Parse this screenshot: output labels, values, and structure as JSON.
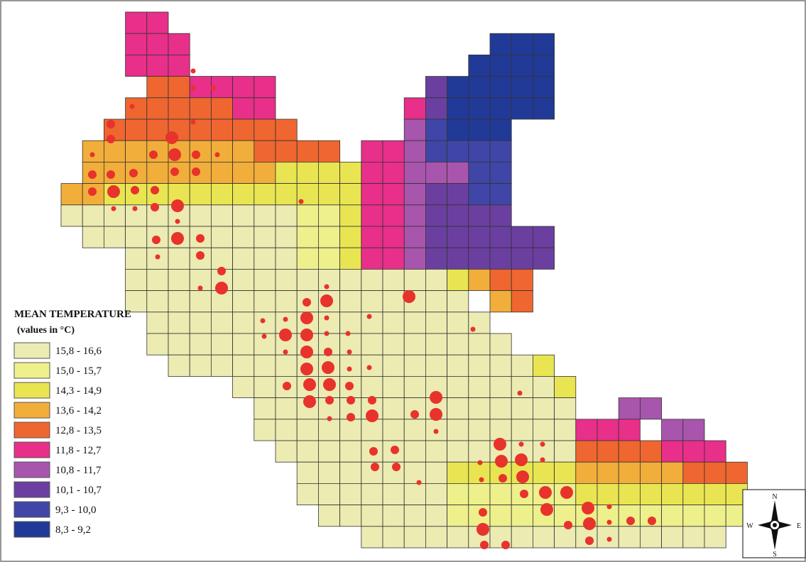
{
  "legend": {
    "title": "MEAN TEMPERATURE",
    "subtitle": "(values in °C)",
    "classes": [
      {
        "label": "15,8 - 16,6",
        "color": "#ecebb2"
      },
      {
        "label": "15,0 - 15,7",
        "color": "#eef08c"
      },
      {
        "label": "14,3 - 14,9",
        "color": "#e9e552"
      },
      {
        "label": "13,6 - 14,2",
        "color": "#f2ae3a"
      },
      {
        "label": "12,8 - 13,5",
        "color": "#ef6630"
      },
      {
        "label": "11,8 - 12,7",
        "color": "#e82f8a"
      },
      {
        "label": "10,8 - 11,7",
        "color": "#a855ad"
      },
      {
        "label": "10,1 - 10,7",
        "color": "#6b3fa0"
      },
      {
        "label": "9,3 - 10,0",
        "color": "#3f46a7"
      },
      {
        "label": "8,3 - 9,2",
        "color": "#213a97"
      }
    ]
  },
  "compass": {
    "n": "N",
    "s": "S",
    "e": "E",
    "w": "W"
  },
  "colors": {
    "grid_stroke": "#333333",
    "dot": "#e8322c",
    "frame": "#777777"
  }
}
